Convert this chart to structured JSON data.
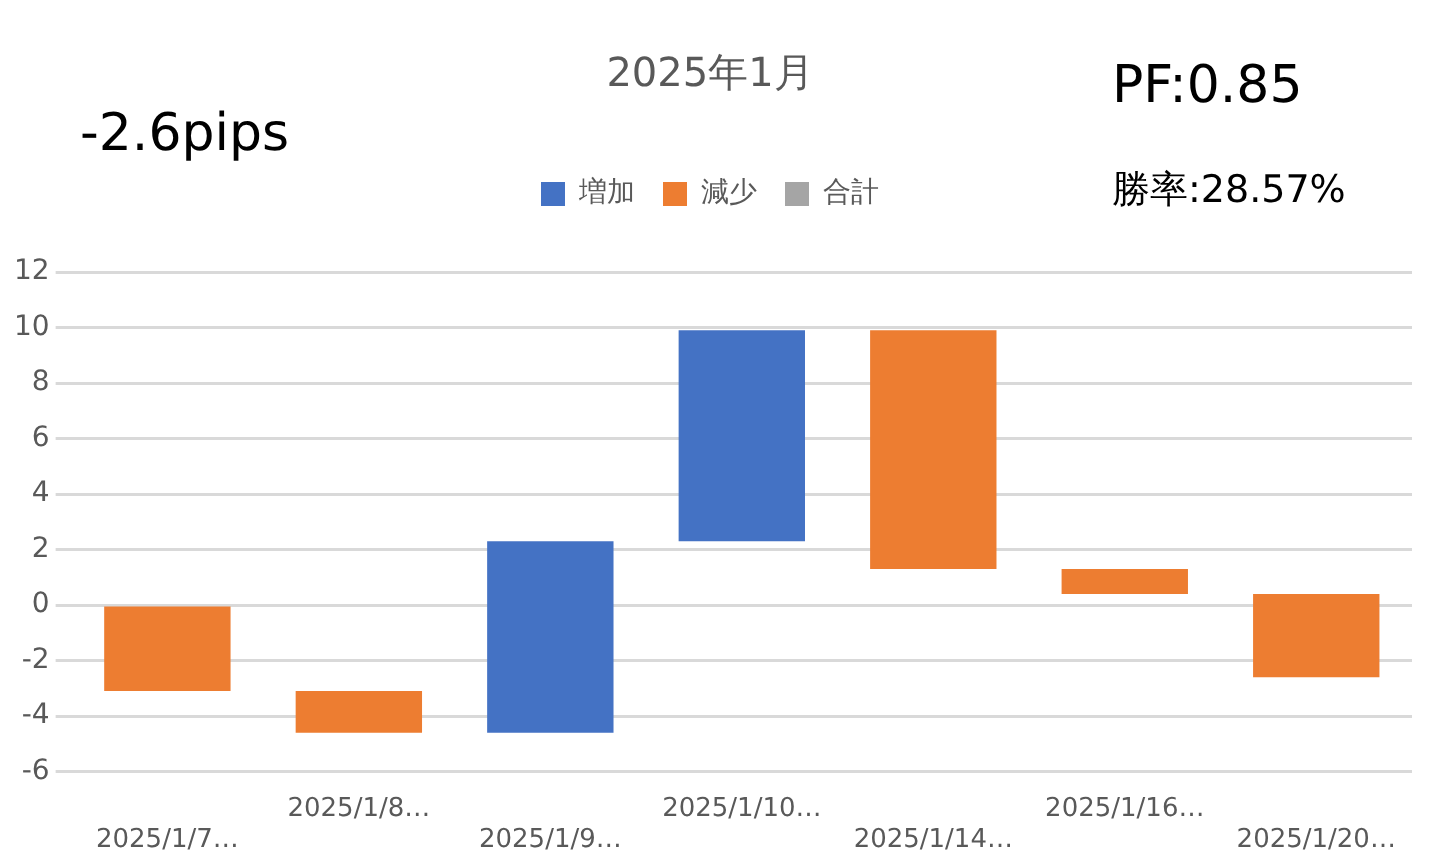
{
  "chart_data": {
    "type": "bar",
    "title": "2025年1月",
    "categories": [
      "2025/1/7…",
      "2025/1/8…",
      "2025/1/9…",
      "2025/1/10…",
      "2025/1/14…",
      "2025/1/16…",
      "2025/1/20…"
    ],
    "series": [
      {
        "name": "増加",
        "color": "#4472c4",
        "values": [
          null,
          null,
          6.9,
          7.6,
          null,
          null,
          null
        ],
        "base": [
          null,
          null,
          -4.6,
          2.3,
          null,
          null,
          null
        ]
      },
      {
        "name": "減少",
        "color": "#ed7d31",
        "values": [
          -3.1,
          -1.5,
          null,
          null,
          -8.6,
          -0.9,
          -3.0
        ],
        "base": [
          0,
          -3.1,
          null,
          null,
          9.9,
          1.3,
          0.4
        ]
      },
      {
        "name": "合計",
        "color": "#a5a5a5",
        "values": [
          null,
          null,
          null,
          null,
          null,
          null,
          null
        ]
      }
    ],
    "ylim": [
      -6,
      12
    ],
    "yticks": [
      -6,
      -4,
      -2,
      0,
      2,
      4,
      6,
      8,
      10,
      12
    ],
    "grid": "y",
    "legend": "top",
    "annotations": [
      "-2.6pips",
      "PF:0.85",
      "勝率:28.57%"
    ]
  }
}
